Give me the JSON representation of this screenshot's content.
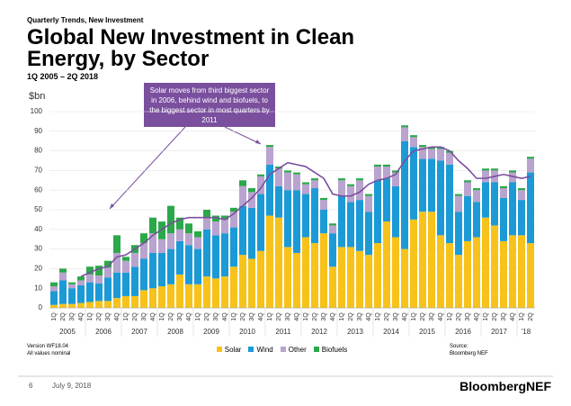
{
  "kicker": "Quarterly Trends, New Investment",
  "chart_data": {
    "type": "stacked-bar",
    "title": "Global New Investment in Clean Energy, by Sector",
    "subtitle": "1Q 2005 – 2Q 2018",
    "y_label": "$bn",
    "annotation": "Solar moves from third biggest sector in 2006, behind wind and biofuels, to the biggest sector in most quarters by 2011",
    "categories": [
      "1Q",
      "2Q",
      "3Q",
      "4Q",
      "1Q",
      "2Q",
      "3Q",
      "4Q",
      "1Q",
      "2Q",
      "3Q",
      "4Q",
      "1Q",
      "2Q",
      "3Q",
      "4Q",
      "1Q",
      "2Q",
      "3Q",
      "4Q",
      "1Q",
      "2Q",
      "3Q",
      "4Q",
      "1Q",
      "2Q",
      "3Q",
      "4Q",
      "1Q",
      "2Q",
      "3Q",
      "4Q",
      "1Q",
      "2Q",
      "3Q",
      "4Q",
      "1Q",
      "2Q",
      "3Q",
      "4Q",
      "1Q",
      "2Q",
      "3Q",
      "4Q",
      "1Q",
      "2Q",
      "3Q",
      "4Q",
      "1Q",
      "2Q",
      "3Q",
      "4Q",
      "1Q",
      "2Q"
    ],
    "years": [
      "2005",
      "2006",
      "2007",
      "2008",
      "2009",
      "2010",
      "2011",
      "2012",
      "2013",
      "2014",
      "2015",
      "2016",
      "2017",
      "'18"
    ],
    "series": [
      {
        "name": "Solar",
        "color": "#f7c31b",
        "values": [
          1.5,
          2,
          2,
          2.5,
          3,
          3.5,
          3.5,
          5,
          6,
          6,
          9,
          10,
          11,
          12,
          17,
          12,
          12,
          16,
          15,
          16,
          21,
          27,
          25,
          29,
          47,
          46,
          31,
          28,
          36,
          33,
          38,
          21,
          31,
          31,
          29,
          27,
          33,
          44,
          36,
          30,
          45,
          49,
          49,
          37,
          33,
          27,
          34,
          36,
          46,
          42,
          34,
          37,
          37,
          33
        ]
      },
      {
        "name": "Wind",
        "color": "#1c9ad6",
        "values": [
          7,
          12,
          8,
          9,
          10,
          9,
          12,
          13,
          12,
          15,
          16,
          18,
          17,
          18,
          17,
          20,
          18,
          24,
          22,
          22,
          20,
          25,
          26,
          29,
          26,
          16,
          29,
          32,
          22,
          28,
          12,
          17,
          26,
          23,
          26,
          22,
          32,
          22,
          26,
          55,
          37,
          27,
          27,
          38,
          40,
          22,
          23,
          18,
          18,
          22,
          22,
          27,
          18,
          36
        ]
      },
      {
        "name": "Other",
        "color": "#b9a3cf",
        "values": [
          2.5,
          4,
          2,
          2.5,
          4,
          4,
          5,
          10,
          6,
          7,
          8,
          10,
          7,
          8,
          6,
          6,
          6,
          6,
          7,
          7,
          8,
          10,
          8,
          9,
          9,
          9,
          9,
          8,
          5,
          4,
          5,
          4,
          8,
          8,
          10,
          8,
          7,
          6,
          7,
          7,
          5,
          6,
          5,
          6,
          6,
          8,
          7,
          6,
          6,
          6,
          5,
          5,
          5,
          7
        ]
      },
      {
        "name": "Biofuels",
        "color": "#2ba84a",
        "values": [
          2,
          2,
          1,
          2,
          4,
          5,
          3.5,
          9,
          2,
          4,
          5,
          8,
          9,
          14,
          6,
          5,
          3,
          4,
          3,
          2,
          2,
          3,
          2,
          1,
          1,
          1,
          1,
          1,
          1,
          1,
          1,
          1,
          1,
          1,
          1,
          1,
          1,
          1,
          1,
          1,
          1,
          1,
          1,
          1,
          1,
          1,
          1,
          1,
          1,
          1,
          1,
          1,
          1,
          1
        ]
      }
    ],
    "line": {
      "color": "#7a4f9e",
      "values": [
        null,
        null,
        null,
        16,
        18,
        20,
        21,
        26,
        27,
        30,
        33,
        37,
        40,
        43,
        45,
        46,
        46,
        46,
        46,
        45,
        48,
        52,
        56,
        61,
        68,
        71,
        74,
        73,
        72,
        69,
        66,
        58,
        57,
        57,
        59,
        63,
        65,
        66,
        68,
        75,
        80,
        81,
        82,
        82,
        80,
        75,
        71,
        66,
        66,
        67,
        68,
        67,
        66,
        67
      ]
    },
    "ylim": [
      0,
      100
    ],
    "yticks": [
      0,
      10,
      20,
      30,
      40,
      50,
      60,
      70,
      80,
      90,
      100
    ],
    "grid": true
  },
  "notes": [
    "Version WF18.04",
    "All values nominal"
  ],
  "source": [
    "Source:",
    "Bloomberg NEF"
  ],
  "footer": {
    "page": "6",
    "date": "July 9, 2018",
    "brand": "BloombergNEF"
  }
}
